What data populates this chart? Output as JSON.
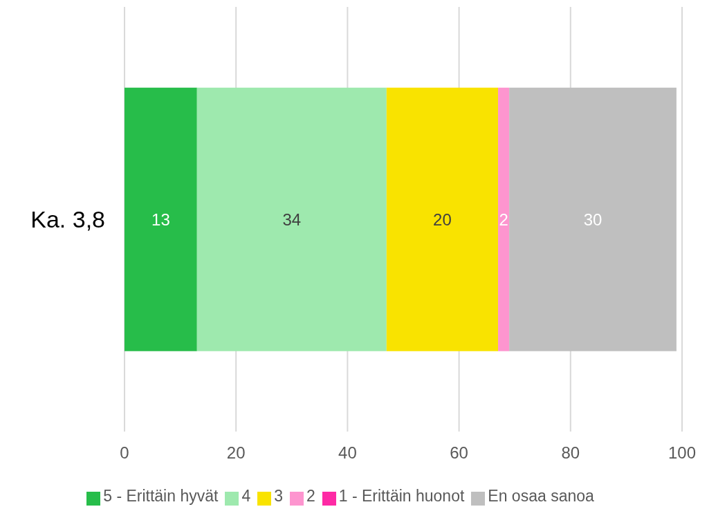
{
  "chart_data": {
    "type": "bar",
    "orientation": "horizontal",
    "stacked": true,
    "categories": [
      "Ka. 3,8"
    ],
    "series": [
      {
        "name": "5 - Erittäin hyvät",
        "color": "#27bd4a",
        "values": [
          13
        ],
        "value_labels": [
          "13"
        ]
      },
      {
        "name": "4",
        "color": "#9ee9ae",
        "values": [
          34
        ],
        "value_labels": [
          "34"
        ]
      },
      {
        "name": "3",
        "color": "#f9e300",
        "values": [
          20
        ],
        "value_labels": [
          "20"
        ]
      },
      {
        "name": "2",
        "color": "#fd95cf",
        "values": [
          2
        ],
        "value_labels": [
          "2"
        ]
      },
      {
        "name": "1 - Erittäin huonot",
        "color": "#fe2aa5",
        "values": [
          0
        ],
        "value_labels": [
          null
        ]
      },
      {
        "name": "En osaa sanoa",
        "color": "#bfbfbf",
        "values": [
          30
        ],
        "value_labels": [
          "30"
        ]
      }
    ],
    "xlim": [
      0,
      100
    ],
    "xticks": [
      0,
      20,
      40,
      60,
      80,
      100
    ],
    "grid": "x",
    "legend": "bottom"
  }
}
